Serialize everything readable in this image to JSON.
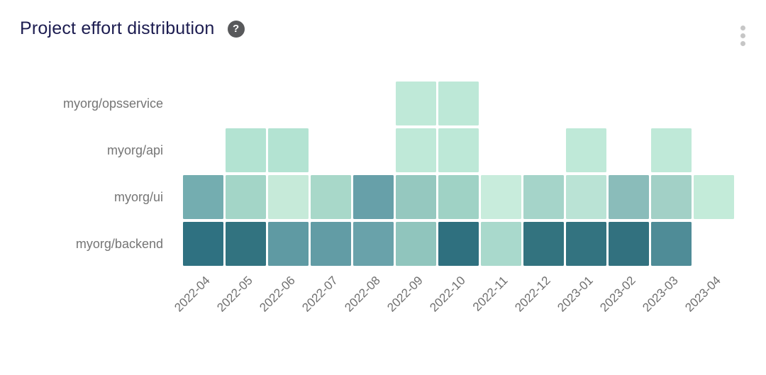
{
  "header": {
    "title": "Project effort distribution",
    "help_icon": "question-mark-circle",
    "menu_icon": "kebab-vertical",
    "help_glyph": "?"
  },
  "colors": {
    "title_text": "#1c1c50",
    "axis_label_text": "#6f6f6f",
    "row_label_text": "#757575",
    "help_icon_bg": "#58595b",
    "kebab_dots": "#c6c6c6",
    "background": "#ffffff"
  },
  "chart_data": {
    "type": "heatmap",
    "title": "Project effort distribution",
    "xlabel": "",
    "ylabel": "",
    "legend_position": "none",
    "grid": "off",
    "x_categories": [
      "2022-04",
      "2022-05",
      "2022-06",
      "2022-07",
      "2022-08",
      "2022-09",
      "2022-10",
      "2022-11",
      "2022-12",
      "2023-01",
      "2023-02",
      "2023-03",
      "2023-04"
    ],
    "y_categories": [
      "myorg/opsservice",
      "myorg/api",
      "myorg/ui",
      "myorg/backend"
    ],
    "color_scale": {
      "low": "#d9f2e6",
      "high": "#2f7080"
    },
    "cell_colors": [
      [
        null,
        null,
        null,
        null,
        null,
        "#bfe9d8",
        "#bde8d7",
        null,
        null,
        null,
        null,
        null,
        null
      ],
      [
        null,
        "#b3e3d2",
        "#b3e3d2",
        null,
        null,
        "#bfe9d8",
        "#bde8d7",
        null,
        null,
        "#bfe9d8",
        null,
        "#bfe9d8",
        null
      ],
      [
        "#74adb0",
        "#a3d5c7",
        "#c6ead9",
        "#a8d8c9",
        "#67a0a9",
        "#95c8bf",
        "#9fd2c5",
        "#c8ecdc",
        "#a5d4c9",
        "#bae3d5",
        "#8abcba",
        "#a2d0c6",
        "#c3ebd9"
      ],
      [
        "#2f7181",
        "#327380",
        "#5f9aa3",
        "#629ca5",
        "#69a2aa",
        "#90c5bd",
        "#2f707f",
        "#a9d9cc",
        "#33737f",
        "#337380",
        "#32717f",
        "#4f8c97",
        null
      ]
    ],
    "values_estimated_0to1": [
      [
        null,
        null,
        null,
        null,
        null,
        0.12,
        0.12,
        null,
        null,
        null,
        null,
        null,
        null
      ],
      [
        null,
        0.16,
        0.16,
        null,
        null,
        0.12,
        0.12,
        null,
        null,
        0.12,
        null,
        0.12,
        null
      ],
      [
        0.5,
        0.28,
        0.1,
        0.25,
        0.56,
        0.34,
        0.29,
        0.08,
        0.27,
        0.18,
        0.42,
        0.29,
        0.1
      ],
      [
        0.93,
        0.91,
        0.62,
        0.6,
        0.55,
        0.34,
        0.93,
        0.26,
        0.91,
        0.91,
        0.92,
        0.7,
        null
      ]
    ]
  }
}
